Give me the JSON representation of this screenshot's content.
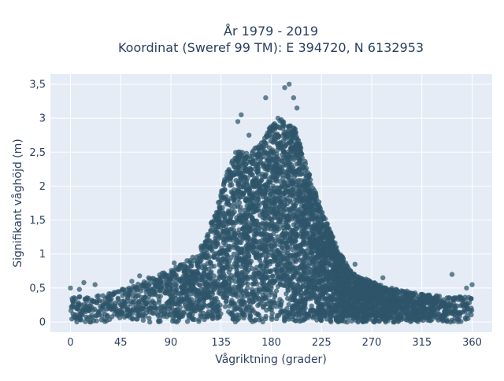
{
  "chart_data": {
    "type": "scatter",
    "title": [
      "År 1979 - 2019",
      "Koordinat (Sweref 99 TM): E 394720, N 6132953"
    ],
    "xlabel": "Vågriktning (grader)",
    "ylabel": "Signifikant våghöjd (m)",
    "xlim": [
      -18,
      378
    ],
    "ylim": [
      -0.15,
      3.65
    ],
    "x_ticks": [
      0,
      45,
      90,
      135,
      180,
      225,
      270,
      315,
      360
    ],
    "x_tick_labels": [
      "0",
      "45",
      "90",
      "135",
      "180",
      "225",
      "270",
      "315",
      "360"
    ],
    "y_ticks": [
      0,
      0.5,
      1,
      1.5,
      2,
      2.5,
      3,
      3.5
    ],
    "y_tick_labels": [
      "0",
      "0,5",
      "1",
      "1,5",
      "2",
      "2,5",
      "3",
      "3,5"
    ],
    "grid": true,
    "colors": {
      "marker": "#2e5569",
      "plot_bg": "#e5ecf6",
      "grid": "#ffffff",
      "text": "#2a3f5f"
    },
    "envelope": {
      "direction": [
        0,
        20,
        40,
        60,
        80,
        95,
        110,
        120,
        130,
        140,
        150,
        160,
        170,
        180,
        190,
        200,
        210,
        220,
        230,
        240,
        250,
        260,
        270,
        285,
        300,
        320,
        340,
        360
      ],
      "height": [
        0.35,
        0.38,
        0.45,
        0.55,
        0.7,
        0.8,
        0.95,
        1.2,
        1.65,
        2.2,
        2.55,
        2.5,
        2.6,
        2.9,
        3.0,
        2.9,
        2.4,
        1.9,
        1.45,
        1.05,
        0.8,
        0.65,
        0.6,
        0.5,
        0.45,
        0.4,
        0.38,
        0.35
      ]
    },
    "outliers": [
      {
        "x": 0,
        "y": 0.5
      },
      {
        "x": 8,
        "y": 0.48
      },
      {
        "x": 12,
        "y": 0.58
      },
      {
        "x": 22,
        "y": 0.55
      },
      {
        "x": 55,
        "y": 0.6
      },
      {
        "x": 62,
        "y": 0.68
      },
      {
        "x": 70,
        "y": 0.65
      },
      {
        "x": 85,
        "y": 0.7
      },
      {
        "x": 93,
        "y": 0.87
      },
      {
        "x": 150,
        "y": 2.95
      },
      {
        "x": 153,
        "y": 3.05
      },
      {
        "x": 160,
        "y": 2.75
      },
      {
        "x": 175,
        "y": 3.3
      },
      {
        "x": 186,
        "y": 3.0
      },
      {
        "x": 192,
        "y": 3.45
      },
      {
        "x": 196,
        "y": 3.5
      },
      {
        "x": 200,
        "y": 3.3
      },
      {
        "x": 203,
        "y": 3.15
      },
      {
        "x": 255,
        "y": 0.85
      },
      {
        "x": 280,
        "y": 0.65
      },
      {
        "x": 342,
        "y": 0.7
      },
      {
        "x": 355,
        "y": 0.5
      },
      {
        "x": 360,
        "y": 0.55
      }
    ]
  }
}
